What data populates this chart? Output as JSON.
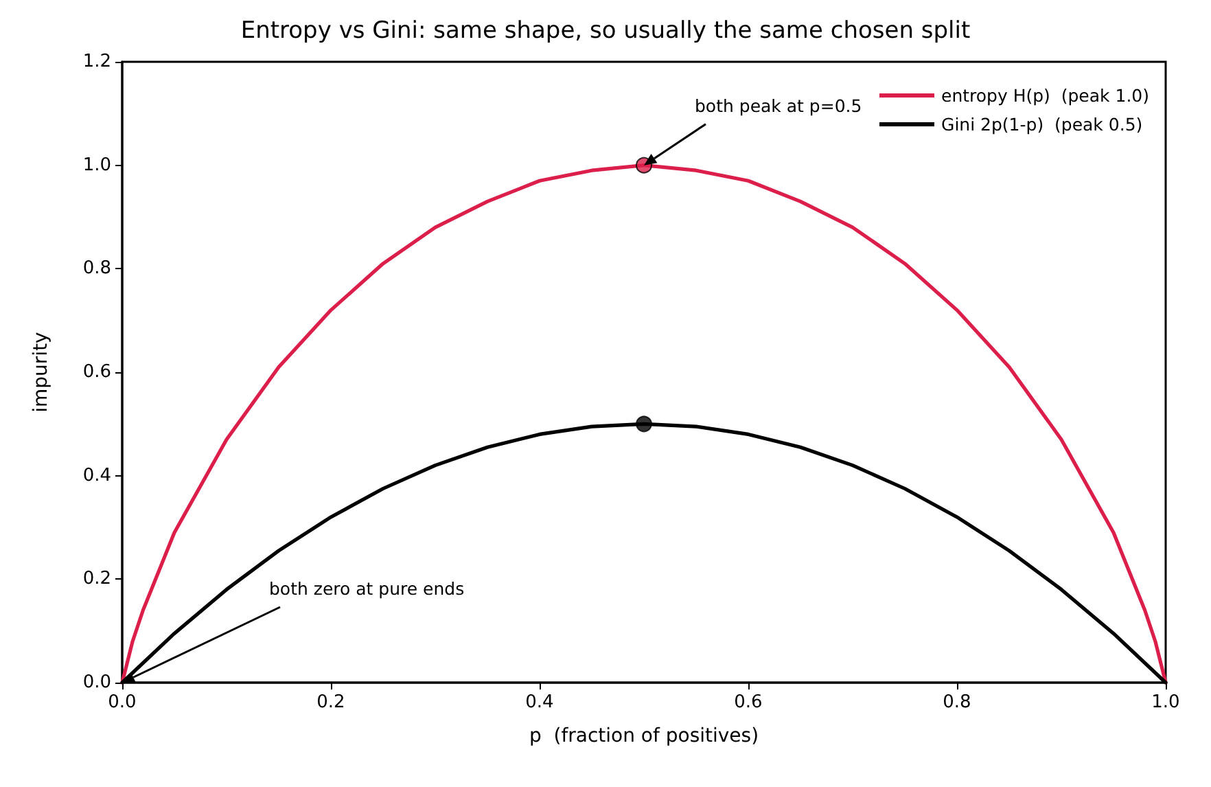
{
  "chart_data": {
    "type": "line",
    "title": "Entropy vs Gini: same shape, so usually the same chosen split",
    "xlabel": "p  (fraction of positives)",
    "ylabel": "impurity",
    "xlim": [
      0,
      1
    ],
    "xticks": [
      {
        "value": 0,
        "label": "0.0"
      },
      0.2,
      0.4,
      0.6,
      0.8,
      {
        "value": 1,
        "label": "1.0"
      }
    ],
    "ylim": [
      0,
      1.2
    ],
    "yticks": [
      {
        "value": 0,
        "label": "0.0"
      },
      0.2,
      0.4,
      0.6,
      0.8,
      {
        "value": 1,
        "label": "1.0"
      },
      1.2
    ],
    "series": [
      {
        "name": "entropy H(p)  (peak 1.0)",
        "color": "#dc1e4a",
        "x": [
          0,
          0.01,
          0.02,
          0.05,
          0.1,
          0.15,
          0.2,
          0.25,
          0.3,
          0.35,
          0.4,
          0.45,
          0.5,
          0.55,
          0.6,
          0.65,
          0.7,
          0.75,
          0.8,
          0.85,
          0.9,
          0.95,
          0.98,
          0.99,
          1
        ],
        "values": [
          0,
          0.08,
          0.14,
          0.29,
          0.47,
          0.61,
          0.72,
          0.81,
          0.88,
          0.93,
          0.97,
          0.99,
          1,
          0.99,
          0.97,
          0.93,
          0.88,
          0.81,
          0.72,
          0.61,
          0.47,
          0.29,
          0.14,
          0.08,
          0
        ]
      },
      {
        "name": "Gini 2p(1-p)  (peak 0.5)",
        "color": "#000000",
        "x": [
          0,
          0.05,
          0.1,
          0.15,
          0.2,
          0.25,
          0.3,
          0.35,
          0.4,
          0.45,
          0.5,
          0.55,
          0.6,
          0.65,
          0.7,
          0.75,
          0.8,
          0.85,
          0.9,
          0.95,
          1
        ],
        "values": [
          0,
          0.095,
          0.18,
          0.255,
          0.32,
          0.375,
          0.42,
          0.455,
          0.48,
          0.495,
          0.5,
          0.495,
          0.48,
          0.455,
          0.42,
          0.375,
          0.32,
          0.255,
          0.18,
          0.095,
          0
        ]
      },
      {
        "type": "scatter",
        "color": "#dc1e4a",
        "x": [
          0.5
        ],
        "values": [
          1.0
        ],
        "marker": "circle"
      },
      {
        "type": "scatter",
        "color": "#000000",
        "x": [
          0.5
        ],
        "values": [
          0.5
        ],
        "marker": "circle"
      }
    ],
    "annotations": [
      {
        "text": "both peak at p=0.5",
        "x": 0.5,
        "y": 1.0
      },
      {
        "text": "both zero at pure ends",
        "x": 0,
        "y": 0
      }
    ],
    "legend": "top right",
    "grid": false,
    "marker": "none",
    "line_style": "solid"
  }
}
